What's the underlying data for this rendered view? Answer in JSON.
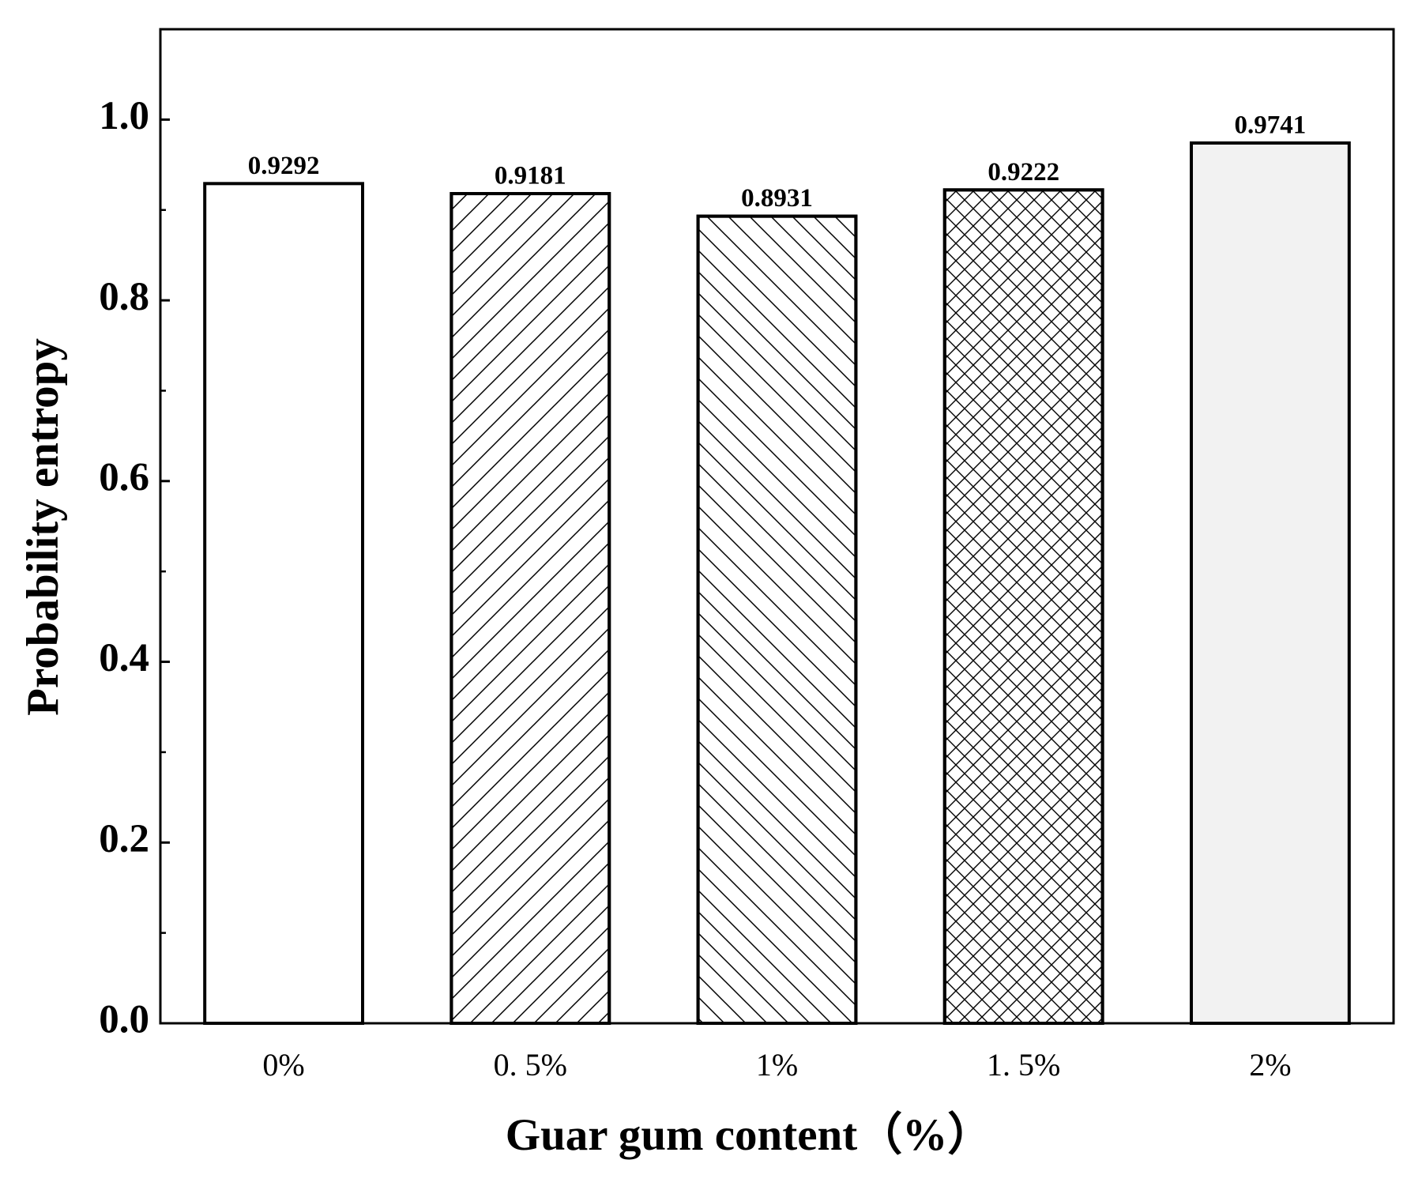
{
  "chart_data": {
    "type": "bar",
    "x_label": "Guar gum content（%）",
    "y_label": "Probability entropy",
    "categories": [
      "0%",
      "0. 5%",
      "1%",
      "1. 5%",
      "2%"
    ],
    "values": [
      0.9292,
      0.9181,
      0.8931,
      0.9222,
      0.9741
    ],
    "fills": [
      "#ffffff",
      "#ffffff",
      "#ffffff",
      "#ffffff",
      "#f2f2f2"
    ],
    "hatches": [
      "none",
      "forward-diagonal",
      "back-diagonal",
      "crosshatch",
      "none"
    ],
    "edge_color": "#000000",
    "ylim": [
      0,
      1.1
    ],
    "yticks": [
      {
        "value": 0,
        "label": "0.0"
      },
      {
        "value": 0.2,
        "label": "0.2"
      },
      {
        "value": 0.4,
        "label": "0.4"
      },
      {
        "value": 0.6,
        "label": "0.6"
      },
      {
        "value": 0.8,
        "label": "0.8"
      },
      {
        "value": 1,
        "label": "1.0"
      }
    ],
    "minor_yticks": [
      0.1,
      0.3,
      0.5,
      0.7,
      0.9
    ],
    "grid": false
  }
}
